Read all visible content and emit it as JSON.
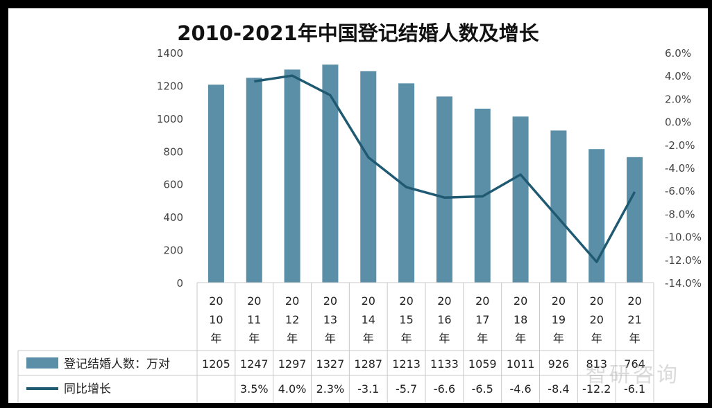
{
  "chart_data": {
    "type": "bar",
    "title": "2010-2021年中国登记结婚人数及增长",
    "categories": [
      "2010年",
      "2011年",
      "2012年",
      "2013年",
      "2014年",
      "2015年",
      "2016年",
      "2017年",
      "2018年",
      "2019年",
      "2020年",
      "2021年"
    ],
    "category_lines": [
      [
        "20",
        "10",
        "年"
      ],
      [
        "20",
        "11",
        "年"
      ],
      [
        "20",
        "12",
        "年"
      ],
      [
        "20",
        "13",
        "年"
      ],
      [
        "20",
        "14",
        "年"
      ],
      [
        "20",
        "15",
        "年"
      ],
      [
        "20",
        "16",
        "年"
      ],
      [
        "20",
        "17",
        "年"
      ],
      [
        "20",
        "18",
        "年"
      ],
      [
        "20",
        "19",
        "年"
      ],
      [
        "20",
        "20",
        "年"
      ],
      [
        "20",
        "21",
        "年"
      ]
    ],
    "series": [
      {
        "name": "登记结婚人数：万对",
        "type": "bar",
        "axis": "left",
        "values": [
          1205,
          1247,
          1297,
          1327,
          1287,
          1213,
          1133,
          1059,
          1011,
          926,
          813,
          764
        ],
        "table_labels": [
          "1205",
          "1247",
          "1297",
          "1327",
          "1287",
          "1213",
          "1133",
          "1059",
          "1011",
          "926",
          "813",
          "764"
        ],
        "color": "#5b8fa8"
      },
      {
        "name": "同比增长",
        "type": "line",
        "axis": "right",
        "values": [
          null,
          3.5,
          4.0,
          2.3,
          -3.1,
          -5.7,
          -6.6,
          -6.5,
          -4.6,
          -8.4,
          -12.2,
          -6.1
        ],
        "table_labels": [
          "",
          "3.5%",
          "4.0%",
          "2.3%",
          "-3.1",
          "-5.7",
          "-6.6",
          "-6.5",
          "-4.6",
          "-8.4",
          "-12.2",
          "-6.1"
        ],
        "color": "#1f5a72"
      }
    ],
    "y_left": {
      "lim": [
        0,
        1400
      ],
      "ticks": [
        "0",
        "200",
        "400",
        "600",
        "800",
        "1000",
        "1200",
        "1400"
      ]
    },
    "y_right": {
      "lim": [
        -14,
        6
      ],
      "ticks": [
        "-14.0%",
        "-12.0%",
        "-10.0%",
        "-8.0%",
        "-6.0%",
        "-4.0%",
        "-2.0%",
        "0.0%",
        "2.0%",
        "4.0%",
        "6.0%"
      ]
    },
    "grid": false,
    "legend": "bottom data table"
  },
  "watermark": "智研咨询"
}
